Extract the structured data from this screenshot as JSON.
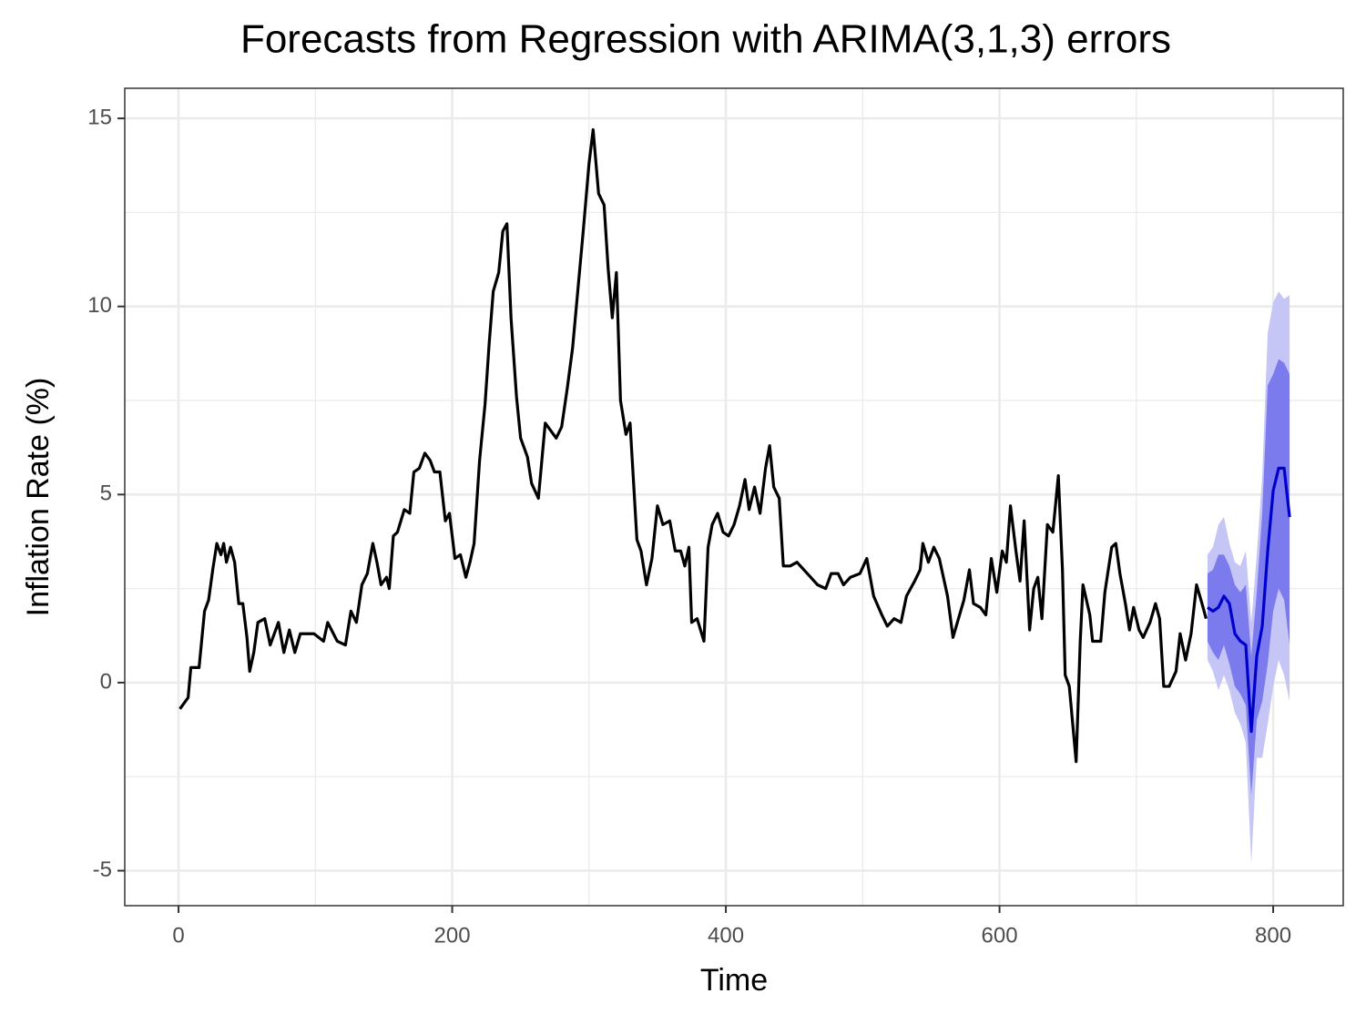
{
  "chart_data": {
    "type": "line",
    "title": "Forecasts from Regression with ARIMA(3,1,3) errors",
    "x_label": "Time",
    "y_label": "Inflation Rate (%)",
    "xlim": [
      -39.3,
      851.2
    ],
    "ylim": [
      -5.93,
      15.8
    ],
    "xticks": [
      0,
      200,
      400,
      600,
      800
    ],
    "yticks": [
      -5,
      0,
      5,
      10,
      15
    ],
    "x_minor_grid": [
      100,
      300,
      500,
      700
    ],
    "y_minor_grid": [
      -2.5,
      2.5,
      7.5,
      12.5
    ],
    "grid": true,
    "series": [
      {
        "color": "#000000",
        "x": [
          1,
          7,
          9,
          15,
          19,
          22,
          25,
          28,
          31,
          33,
          35,
          38,
          41,
          44,
          47,
          50,
          52,
          55,
          58,
          63,
          67,
          73,
          77,
          81,
          85,
          89,
          99,
          106,
          109,
          116,
          122,
          126,
          130,
          134,
          138,
          142,
          145,
          148,
          152,
          154,
          157,
          160,
          165,
          169,
          172,
          176,
          180,
          184,
          187,
          191,
          195,
          198,
          202,
          206,
          210,
          213,
          216,
          220,
          224,
          227,
          230,
          234,
          237,
          240,
          243,
          247,
          250,
          255,
          258,
          263,
          268,
          272,
          276,
          280,
          284,
          288,
          292,
          296,
          300,
          303,
          307,
          311,
          314,
          317,
          320,
          323,
          327,
          330,
          335,
          338,
          342,
          346,
          350,
          354,
          359,
          363,
          367,
          370,
          373,
          375,
          379,
          384,
          387,
          390,
          394,
          398,
          402,
          406,
          410,
          414,
          417,
          421,
          425,
          429,
          432,
          435,
          439,
          442,
          447,
          452,
          457,
          462,
          467,
          473,
          477,
          482,
          486,
          491,
          498,
          503,
          508,
          514,
          518,
          523,
          528,
          532,
          538,
          542,
          544,
          548,
          552,
          556,
          559,
          562,
          566,
          570,
          574,
          578,
          581,
          586,
          590,
          594,
          598,
          602,
          605,
          608,
          612,
          615,
          618,
          622,
          625,
          628,
          631,
          635,
          639,
          643,
          646,
          648,
          651,
          654,
          656,
          659,
          661,
          666,
          668,
          674,
          677,
          682,
          685,
          688,
          692,
          695,
          698,
          702,
          705,
          710,
          714,
          717,
          720,
          724,
          729,
          732,
          736,
          740,
          744,
          748,
          751
        ],
        "values": [
          -0.7,
          -0.4,
          0.4,
          0.4,
          1.9,
          2.2,
          3.0,
          3.7,
          3.4,
          3.7,
          3.2,
          3.6,
          3.2,
          2.1,
          2.1,
          1.2,
          0.3,
          0.8,
          1.6,
          1.7,
          1.0,
          1.6,
          0.8,
          1.4,
          0.8,
          1.3,
          1.3,
          1.1,
          1.6,
          1.1,
          1.0,
          1.9,
          1.6,
          2.6,
          2.9,
          3.7,
          3.2,
          2.6,
          2.8,
          2.5,
          3.9,
          4.0,
          4.6,
          4.5,
          5.6,
          5.7,
          6.1,
          5.9,
          5.6,
          5.6,
          4.3,
          4.5,
          3.3,
          3.4,
          2.8,
          3.2,
          3.7,
          5.9,
          7.4,
          9.0,
          10.4,
          10.9,
          12.0,
          12.2,
          9.7,
          7.6,
          6.5,
          6.0,
          5.3,
          4.9,
          6.9,
          6.7,
          6.5,
          6.8,
          7.8,
          8.9,
          10.5,
          12.1,
          13.8,
          14.7,
          13.0,
          12.7,
          11.0,
          9.7,
          10.9,
          7.5,
          6.6,
          6.9,
          3.8,
          3.5,
          2.6,
          3.3,
          4.7,
          4.2,
          4.3,
          3.5,
          3.5,
          3.1,
          3.6,
          1.6,
          1.7,
          1.1,
          3.6,
          4.2,
          4.5,
          4.0,
          3.9,
          4.2,
          4.7,
          5.4,
          4.6,
          5.2,
          4.5,
          5.7,
          6.3,
          5.2,
          4.9,
          3.1,
          3.1,
          3.2,
          3.0,
          2.8,
          2.6,
          2.5,
          2.9,
          2.9,
          2.6,
          2.8,
          2.9,
          3.3,
          2.3,
          1.8,
          1.5,
          1.7,
          1.6,
          2.3,
          2.7,
          3.0,
          3.7,
          3.2,
          3.6,
          3.3,
          2.8,
          2.3,
          1.2,
          1.7,
          2.2,
          3.0,
          2.1,
          2.0,
          1.8,
          3.3,
          2.4,
          3.5,
          3.2,
          4.7,
          3.5,
          2.7,
          4.3,
          1.4,
          2.5,
          2.8,
          1.7,
          4.2,
          4.0,
          5.5,
          3.0,
          0.2,
          -0.1,
          -1.3,
          -2.1,
          1.1,
          2.6,
          1.8,
          1.1,
          1.1,
          2.4,
          3.6,
          3.7,
          2.9,
          2.1,
          1.4,
          2.0,
          1.4,
          1.2,
          1.6,
          2.1,
          1.7,
          -0.1,
          -0.1,
          0.3,
          1.3,
          0.6,
          1.3,
          2.6,
          2.1,
          1.7
        ]
      }
    ],
    "forecast": {
      "color": "#0000cc",
      "color80": "#7b7bee",
      "color95": "#c5c5f6",
      "x": [
        752,
        756,
        760,
        764,
        768,
        772,
        776,
        780,
        784,
        788,
        792,
        796,
        800,
        804,
        808,
        812
      ],
      "mean": [
        2.0,
        1.9,
        2.0,
        2.3,
        2.1,
        1.3,
        1.1,
        1.0,
        -1.3,
        0.7,
        1.5,
        3.5,
        5.1,
        5.7,
        5.7,
        4.4
      ],
      "lo80": [
        1.1,
        0.8,
        0.6,
        1.0,
        0.5,
        -0.1,
        -0.3,
        -0.6,
        -3.0,
        -1.0,
        -0.5,
        0.5,
        1.9,
        2.5,
        2.2,
        1.0
      ],
      "hi80": [
        2.9,
        3.0,
        3.4,
        3.4,
        3.1,
        2.6,
        2.4,
        2.6,
        0.7,
        2.4,
        4.5,
        7.9,
        8.2,
        8.6,
        8.5,
        8.2
      ],
      "lo95": [
        0.6,
        0.3,
        -0.2,
        0.2,
        -0.2,
        -0.8,
        -1.1,
        -1.6,
        -4.8,
        -2.0,
        -2.0,
        -1.1,
        -0.1,
        0.6,
        0.2,
        -0.5
      ],
      "hi95": [
        3.4,
        3.6,
        4.2,
        4.4,
        3.7,
        3.2,
        3.1,
        3.5,
        1.6,
        3.4,
        5.5,
        9.3,
        10.1,
        10.4,
        10.2,
        10.3
      ]
    }
  }
}
